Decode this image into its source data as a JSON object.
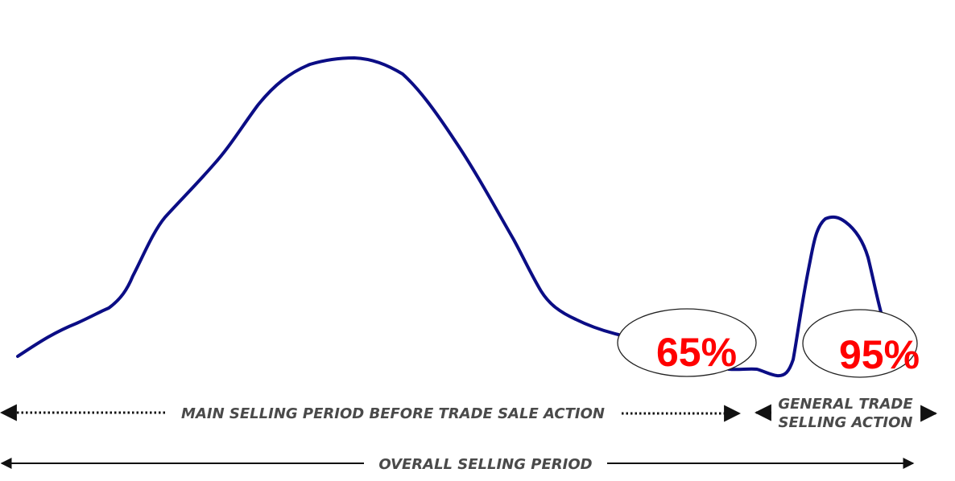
{
  "colors": {
    "curve": "#0b0d85",
    "highlight_text": "#ff0000",
    "label_text": "#4a4a4a",
    "arrow": "#111111"
  },
  "callouts": {
    "main_period_share": "65%",
    "trade_action_share": "95%"
  },
  "periods": {
    "main_selling": "MAIN SELLING PERIOD BEFORE TRADE SALE ACTION",
    "trade_action_line1": "GENERAL TRADE",
    "trade_action_line2": "SELLING ACTION",
    "overall": "OVERALL SELLING PERIOD"
  }
}
